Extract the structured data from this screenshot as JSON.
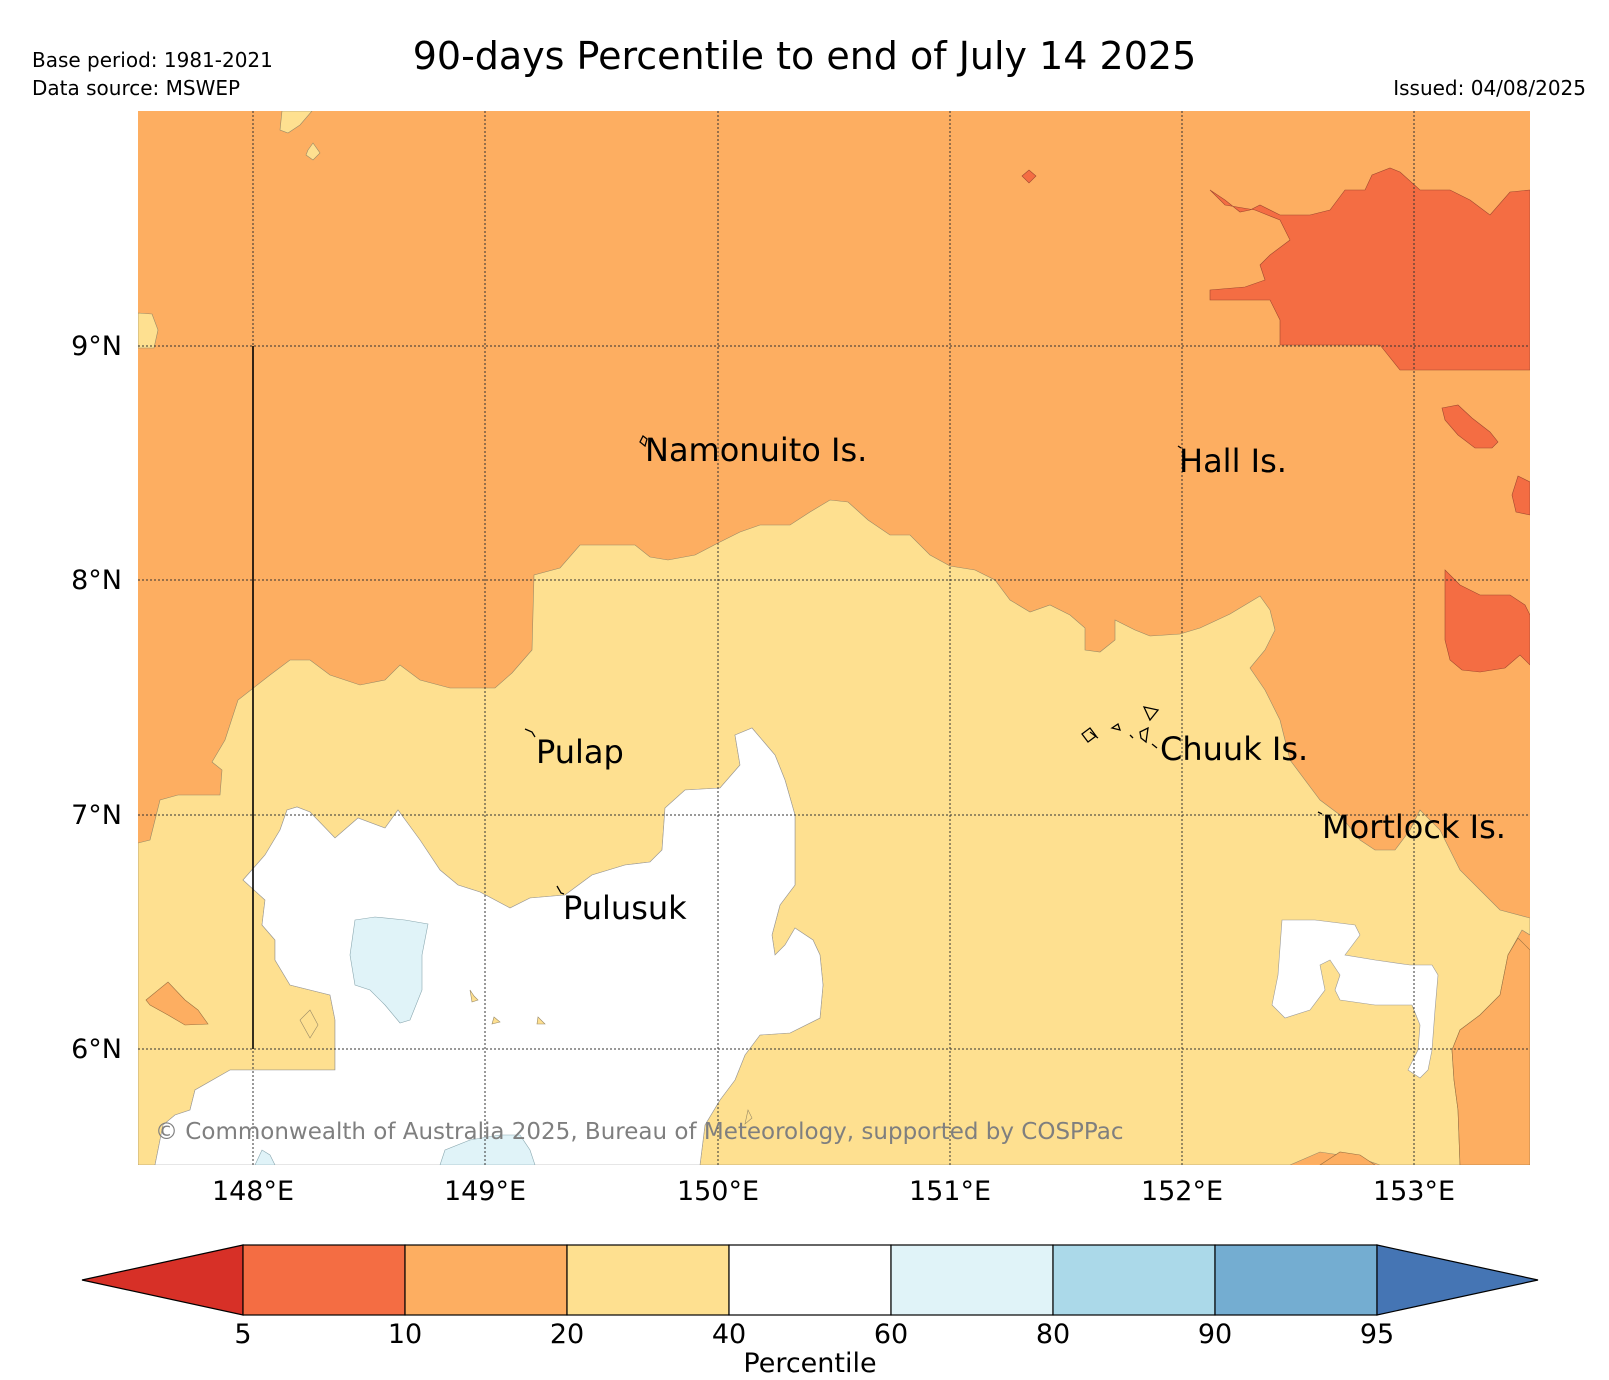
{
  "header": {
    "base_period": "Base period: 1981-2021",
    "data_source": "Data source: MSWEP",
    "title": "90-days Percentile to end of July 14 2025",
    "issued": "Issued: 04/08/2025"
  },
  "map": {
    "lat_labels": [
      "9°N",
      "8°N",
      "7°N",
      "6°N"
    ],
    "lon_labels": [
      "148°E",
      "149°E",
      "150°E",
      "151°E",
      "152°E",
      "153°E"
    ],
    "places": [
      "Namonuito Is.",
      "Hall Is.",
      "Pulap",
      "Chuuk Is.",
      "Mortlock Is.",
      "Pulusuk"
    ],
    "copyright": "© Commonwealth of Australia 2025, Bureau of Meteorology, supported by COSPPac"
  },
  "legend": {
    "label": "Percentile",
    "ticks": [
      "5",
      "10",
      "20",
      "40",
      "60",
      "80",
      "90",
      "95"
    ],
    "colors": [
      "#d73027",
      "#f46d43",
      "#fdae61",
      "#fee090",
      "#ffffff",
      "#e0f3f8",
      "#abd9e9",
      "#74add1",
      "#4575b4"
    ]
  }
}
